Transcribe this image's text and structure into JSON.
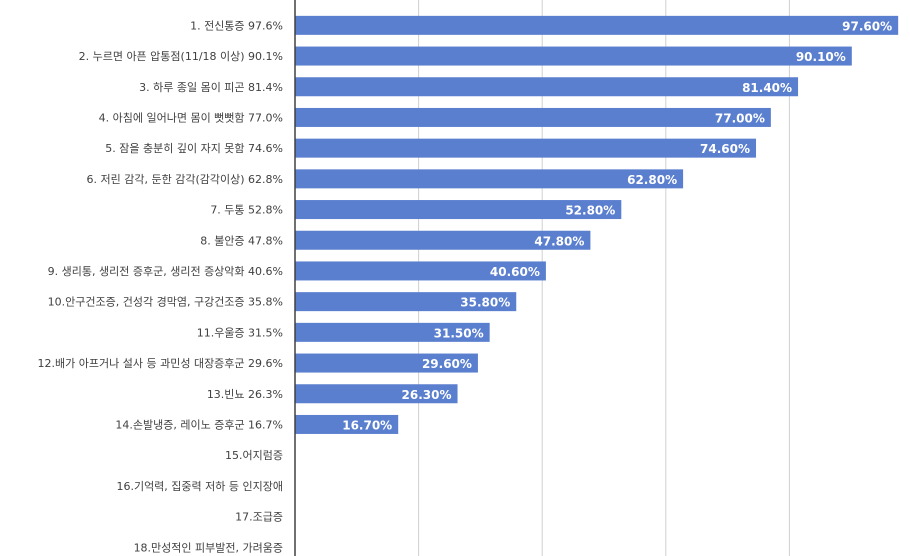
{
  "chart_data": {
    "type": "bar",
    "orientation": "horizontal",
    "categories": [
      "1. 전신통증 97.6%",
      "2. 누르면 아픈 압통점(11/18 이상) 90.1%",
      "3. 하루 종일 몸이 피곤 81.4%",
      "4. 아침에 일어나면 몸이 뻣뻣함 77.0%",
      "5. 잠을 충분히 깊이 자지 못함 74.6%",
      "6. 저린 감각, 둔한 감각(감각이상) 62.8%",
      "7. 두통 52.8%",
      "8. 불안증 47.8%",
      "9. 생리통, 생리전 증후군, 생리전 증상악화 40.6%",
      "10.안구건조증, 건성각 경막염, 구강건조증 35.8%",
      "11.우울증 31.5%",
      "12.배가 아프거나 설사 등 과민성 대장증후군 29.6%",
      "13.빈뇨 26.3%",
      "14.손발냉증, 레이노 증후군 16.7%",
      "15.어지럼증",
      "16.기억력, 집중력 저하 등 인지장애",
      "17.조급증",
      "18.만성적인 피부발전, 가려움증"
    ],
    "values": [
      97.6,
      90.1,
      81.4,
      77.0,
      74.6,
      62.8,
      52.8,
      47.8,
      40.6,
      35.8,
      31.5,
      29.6,
      26.3,
      16.7,
      null,
      null,
      null,
      null
    ],
    "value_labels": [
      "97.60%",
      "90.10%",
      "81.40%",
      "77.00%",
      "74.60%",
      "62.80%",
      "52.80%",
      "47.80%",
      "40.60%",
      "35.80%",
      "31.50%",
      "29.60%",
      "26.30%",
      "16.70%",
      "",
      "",
      "",
      ""
    ],
    "xlim": [
      0,
      100
    ],
    "grid": true,
    "bar_color": "#5b7fcf",
    "grid_color": "#d0d0d0"
  }
}
